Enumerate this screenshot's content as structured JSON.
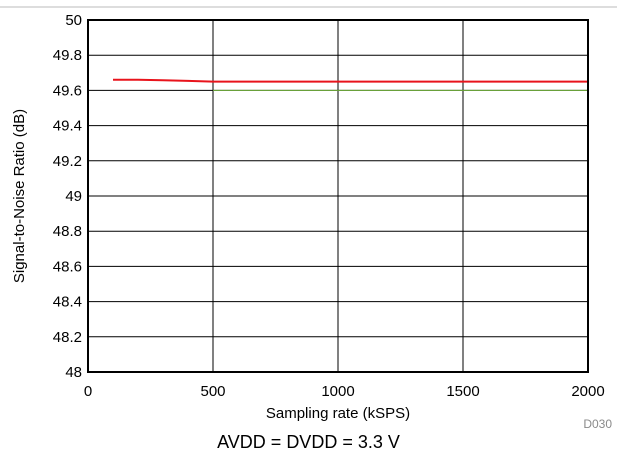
{
  "chart_data": {
    "type": "line",
    "title": "",
    "xlabel": "Sampling rate (kSPS)",
    "ylabel": "Signal-to-Noise Ratio (dB)",
    "xlim": [
      0,
      2000
    ],
    "ylim": [
      48,
      50
    ],
    "x_ticks": [
      "0",
      "500",
      "1000",
      "1500",
      "2000"
    ],
    "y_ticks": [
      "48",
      "48.2",
      "48.4",
      "48.6",
      "48.8",
      "49",
      "49.2",
      "49.4",
      "49.6",
      "49.8",
      "50"
    ],
    "grid": true,
    "series": [
      {
        "color": "#e8141c",
        "x": [
          100,
          200,
          300,
          400,
          500,
          750,
          1000,
          1250,
          1500,
          1750,
          2000
        ],
        "y": [
          49.66,
          49.66,
          49.658,
          49.654,
          49.65,
          49.65,
          49.65,
          49.65,
          49.65,
          49.65,
          49.65
        ]
      }
    ],
    "reference_line": {
      "color": "#6fae3a",
      "y": 49.6,
      "x": [
        500,
        2000
      ]
    },
    "figure_code": "D030",
    "condition_caption": "AVDD = DVDD = 3.3 V"
  }
}
